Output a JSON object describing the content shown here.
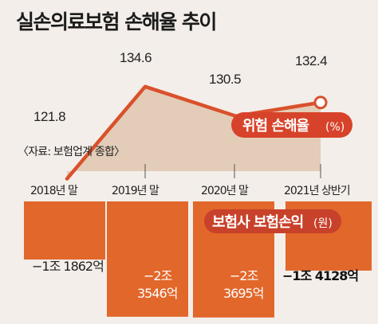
{
  "title": "실손의료보험 손해율 추이",
  "source": "〈자료: 보험업계 종합〉",
  "chart_data": [
    {
      "type": "line",
      "name": "위험 손해율",
      "unit": "(%)",
      "legend": "위험 손해율",
      "categories": [
        "2018년 말",
        "2019년 말",
        "2020년 말",
        "2021년 상반기"
      ],
      "values": [
        121.8,
        134.6,
        130.5,
        132.4
      ],
      "value_labels": [
        "121.8",
        "134.6",
        "130.5",
        "132.4"
      ],
      "ylim": [
        115,
        140
      ],
      "color": "#d9512c",
      "area_color": "#e3cdb8"
    },
    {
      "type": "bar",
      "name": "보험사 보험손익",
      "unit": "(원)",
      "legend": "보험사 보험손익",
      "categories": [
        "2018년 말",
        "2019년 말",
        "2020년 말",
        "2021년 상반기"
      ],
      "values": [
        -11862,
        -23546,
        -23695,
        -14128
      ],
      "value_unit": "억원",
      "value_labels": [
        [
          "−1조 1862억"
        ],
        [
          "−2조",
          "3546억"
        ],
        [
          "−2조",
          "3695억"
        ],
        [
          "−1조 4128억"
        ]
      ],
      "ylim": [
        -26000,
        0
      ],
      "color": "#e2672b"
    }
  ]
}
